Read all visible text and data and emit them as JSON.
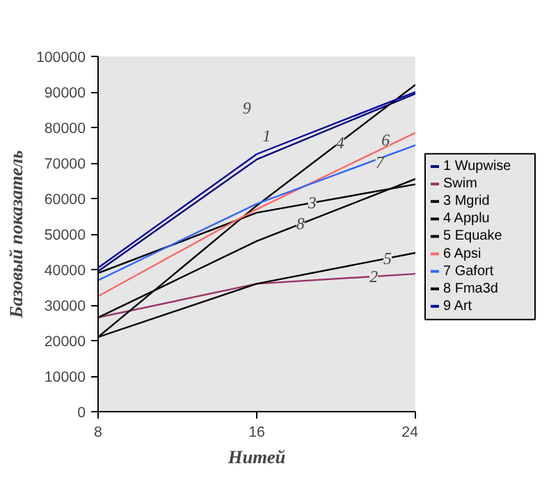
{
  "chart_data": {
    "type": "line",
    "xlabel": "Нитей",
    "ylabel": "Базовый показатель",
    "x": [
      8,
      16,
      24
    ],
    "xlim": [
      8,
      24
    ],
    "ylim": [
      0,
      100000
    ],
    "xticks": [
      8,
      16,
      24
    ],
    "yticks": [
      0,
      10000,
      20000,
      30000,
      40000,
      50000,
      60000,
      70000,
      80000,
      90000,
      100000
    ],
    "grid": false,
    "legend": "right",
    "marker": "none",
    "line_style": "solid",
    "series": [
      {
        "name": "1 Wupwise",
        "color": "#000080",
        "values": [
          39500,
          71000,
          89500
        ]
      },
      {
        "name": "Swim",
        "color": "#993366",
        "values": [
          26500,
          36000,
          38800
        ]
      },
      {
        "name": "3 Mgrid",
        "color": "#000000",
        "values": [
          39000,
          56000,
          64000
        ]
      },
      {
        "name": "4 Applu",
        "color": "#000000",
        "values": [
          21000,
          58000,
          92000
        ]
      },
      {
        "name": "5 Equake",
        "color": "#000000",
        "values": [
          21000,
          36000,
          44700
        ]
      },
      {
        "name": "6 Apsi",
        "color": "#ff6666",
        "values": [
          32500,
          57000,
          78500
        ]
      },
      {
        "name": "7 Gafort",
        "color": "#3366ff",
        "values": [
          37000,
          58500,
          75000
        ]
      },
      {
        "name": "8 Fma3d",
        "color": "#000000",
        "values": [
          26500,
          48000,
          65500
        ]
      },
      {
        "name": "9 Art",
        "color": "#0000a0",
        "values": [
          40500,
          72500,
          90000
        ]
      }
    ],
    "annotations": [
      {
        "text": "9",
        "x": 15.5,
        "y": 85500
      },
      {
        "text": "1",
        "x": 16.5,
        "y": 77600
      },
      {
        "text": "4",
        "x": 20.2,
        "y": 75700
      },
      {
        "text": "6",
        "x": 22.5,
        "y": 76500
      },
      {
        "text": "7",
        "x": 22.2,
        "y": 70200
      },
      {
        "text": "3",
        "x": 18.8,
        "y": 58800
      },
      {
        "text": "8",
        "x": 18.2,
        "y": 52900
      },
      {
        "text": "5",
        "x": 22.6,
        "y": 43100
      },
      {
        "text": "2",
        "x": 21.9,
        "y": 38000
      }
    ]
  }
}
